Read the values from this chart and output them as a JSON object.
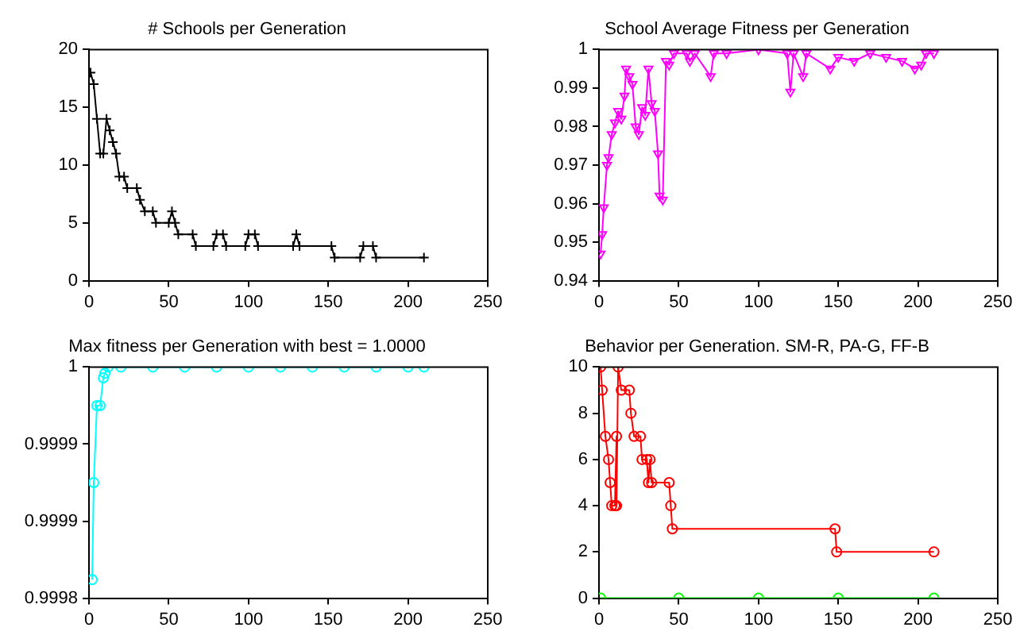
{
  "chart_data": [
    {
      "type": "line",
      "title": "# Schools per Generation",
      "xlim": [
        0,
        250
      ],
      "xticks": [
        0,
        50,
        100,
        150,
        200,
        250
      ],
      "ylim": [
        0,
        20
      ],
      "yticks": [
        0,
        5,
        10,
        15,
        20
      ],
      "grid": false,
      "legend": false,
      "marker": "cross",
      "line_style": "solid",
      "series": [
        {
          "color": "#000000",
          "x": [
            1,
            3,
            5,
            7,
            9,
            11,
            13,
            15,
            17,
            19,
            22,
            24,
            30,
            32,
            35,
            40,
            42,
            50,
            52,
            54,
            56,
            65,
            67,
            78,
            80,
            84,
            86,
            98,
            100,
            104,
            106,
            128,
            130,
            132,
            152,
            154,
            170,
            172,
            178,
            180,
            210
          ],
          "values": [
            18,
            17,
            14,
            11,
            11,
            14,
            13,
            12,
            11,
            9,
            9,
            8,
            8,
            7,
            6,
            6,
            5,
            5,
            6,
            5,
            4,
            4,
            3,
            3,
            4,
            4,
            3,
            3,
            4,
            4,
            3,
            3,
            4,
            3,
            3,
            2,
            2,
            3,
            3,
            2,
            2
          ]
        }
      ]
    },
    {
      "type": "line",
      "title": "School Average Fitness per Generation",
      "xlim": [
        0,
        250
      ],
      "xticks": [
        0,
        50,
        100,
        150,
        200,
        250
      ],
      "ylim": [
        0.94,
        1
      ],
      "yticks": [
        0.94,
        0.95,
        0.96,
        0.97,
        0.98,
        0.99,
        1
      ],
      "grid": false,
      "legend": false,
      "marker": "triangle",
      "line_style": "solid",
      "series": [
        {
          "color": "#ff00ff",
          "x": [
            1,
            2,
            3,
            5,
            6,
            8,
            10,
            12,
            14,
            16,
            17,
            19,
            21,
            23,
            25,
            27,
            29,
            31,
            33,
            35,
            37,
            38,
            40,
            42,
            44,
            47,
            55,
            57,
            60,
            70,
            72,
            80,
            100,
            118,
            120,
            122,
            128,
            130,
            145,
            150,
            160,
            170,
            180,
            190,
            198,
            202,
            205,
            210
          ],
          "values": [
            0.947,
            0.952,
            0.959,
            0.97,
            0.972,
            0.978,
            0.981,
            0.984,
            0.982,
            0.988,
            0.995,
            0.993,
            0.991,
            0.98,
            0.978,
            0.985,
            0.983,
            0.995,
            0.986,
            0.984,
            0.973,
            0.962,
            0.961,
            0.997,
            0.996,
            0.999,
            0.999,
            0.997,
            0.999,
            0.993,
            0.999,
            0.999,
            1.0,
            0.999,
            0.989,
            0.999,
            0.993,
            0.999,
            0.995,
            0.998,
            0.997,
            0.999,
            0.998,
            0.997,
            0.995,
            0.996,
            0.999,
            0.999
          ]
        }
      ]
    },
    {
      "type": "line",
      "title": "Max fitness per Generation with best = 1.0000",
      "xlim": [
        0,
        250
      ],
      "xticks": [
        0,
        50,
        100,
        150,
        200,
        250
      ],
      "ylim": [
        0.99985,
        1
      ],
      "yticks": [
        {
          "value": 0.99985,
          "label": "0.9998"
        },
        {
          "value": 0.9999,
          "label": "0.9999"
        },
        {
          "value": 0.99995,
          "label": "0.9999"
        },
        1
      ],
      "grid": false,
      "legend": false,
      "marker": "circle",
      "line_style": "solid",
      "series": [
        {
          "color": "#00ffff",
          "x": [
            2,
            3,
            5,
            7,
            9,
            10,
            12,
            20,
            40,
            60,
            80,
            100,
            120,
            140,
            160,
            180,
            200,
            210
          ],
          "values": [
            0.999862,
            0.999925,
            0.999975,
            0.999975,
            0.999993,
            0.999996,
            1,
            1,
            1,
            1,
            1,
            1,
            1,
            1,
            1,
            1,
            1,
            1
          ]
        }
      ]
    },
    {
      "type": "line",
      "title": "Behavior per Generation. SM-R, PA-G, FF-B",
      "xlim": [
        0,
        250
      ],
      "xticks": [
        0,
        50,
        100,
        150,
        200,
        250
      ],
      "ylim": [
        0,
        10
      ],
      "yticks": [
        0,
        2,
        4,
        6,
        8,
        10
      ],
      "grid": false,
      "legend": false,
      "marker": "circle",
      "line_style": "solid",
      "series": [
        {
          "color": "#ff0000",
          "x": [
            1,
            2,
            4,
            6,
            7,
            8,
            10,
            11,
            11,
            12,
            14,
            19,
            20,
            22,
            26,
            27,
            30,
            31,
            32,
            33,
            44,
            45,
            46,
            148,
            149,
            210
          ],
          "values": [
            10,
            9,
            7,
            6,
            5,
            4,
            4,
            7,
            4,
            10,
            9,
            9,
            8,
            7,
            7,
            6,
            6,
            5,
            6,
            5,
            5,
            4,
            3,
            3,
            2,
            2
          ]
        },
        {
          "color": "#00ff00",
          "x": [
            1,
            50,
            100,
            150,
            210
          ],
          "values": [
            0,
            0,
            0,
            0,
            0
          ]
        }
      ]
    }
  ]
}
